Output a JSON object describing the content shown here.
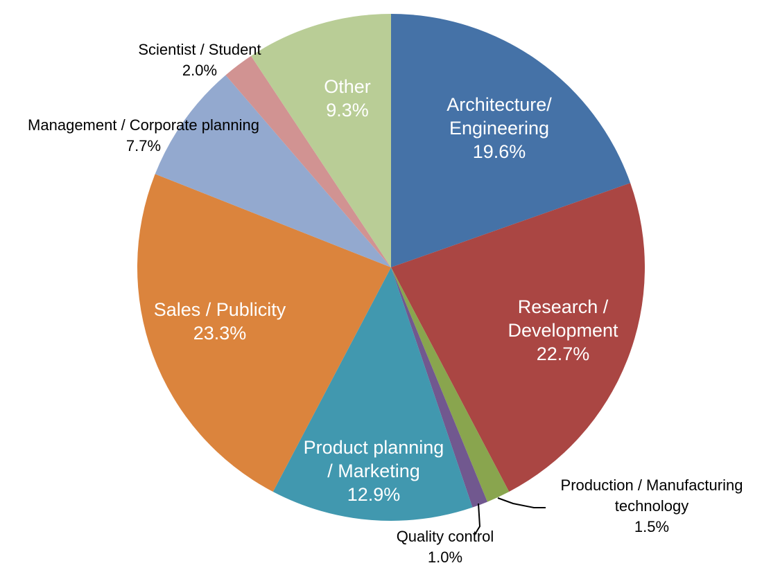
{
  "chart_data": {
    "type": "pie",
    "start_angle_deg": 0,
    "direction": "clockwise",
    "unit": "%",
    "slices": [
      {
        "label_lines": [
          "Architecture/",
          "Engineering"
        ],
        "value": 19.6,
        "value_label": "19.6%",
        "color": "#4572A7",
        "label_style": "inside"
      },
      {
        "label_lines": [
          "Research /",
          "Development"
        ],
        "value": 22.7,
        "value_label": "22.7%",
        "color": "#AA4643",
        "label_style": "inside"
      },
      {
        "label_lines": [
          "Production / Manufacturing",
          "technology"
        ],
        "value": 1.5,
        "value_label": "1.5%",
        "color": "#89A54E",
        "label_style": "outside"
      },
      {
        "label_lines": [
          "Quality control"
        ],
        "value": 1.0,
        "value_label": "1.0%",
        "color": "#71588F",
        "label_style": "outside"
      },
      {
        "label_lines": [
          "Product planning",
          "/ Marketing"
        ],
        "value": 12.9,
        "value_label": "12.9%",
        "color": "#4198AF",
        "label_style": "inside"
      },
      {
        "label_lines": [
          "Sales / Publicity"
        ],
        "value": 23.3,
        "value_label": "23.3%",
        "color": "#DB843D",
        "label_style": "inside"
      },
      {
        "label_lines": [
          "Management / Corporate planning"
        ],
        "value": 7.7,
        "value_label": "7.7%",
        "color": "#93A9CF",
        "label_style": "outside"
      },
      {
        "label_lines": [
          "Scientist / Student"
        ],
        "value": 2.0,
        "value_label": "2.0%",
        "color": "#D19392",
        "label_style": "outside"
      },
      {
        "label_lines": [
          "Other"
        ],
        "value": 9.3,
        "value_label": "9.3%",
        "color": "#B9CD96",
        "label_style": "inside"
      }
    ],
    "title": "",
    "legend": "none"
  }
}
